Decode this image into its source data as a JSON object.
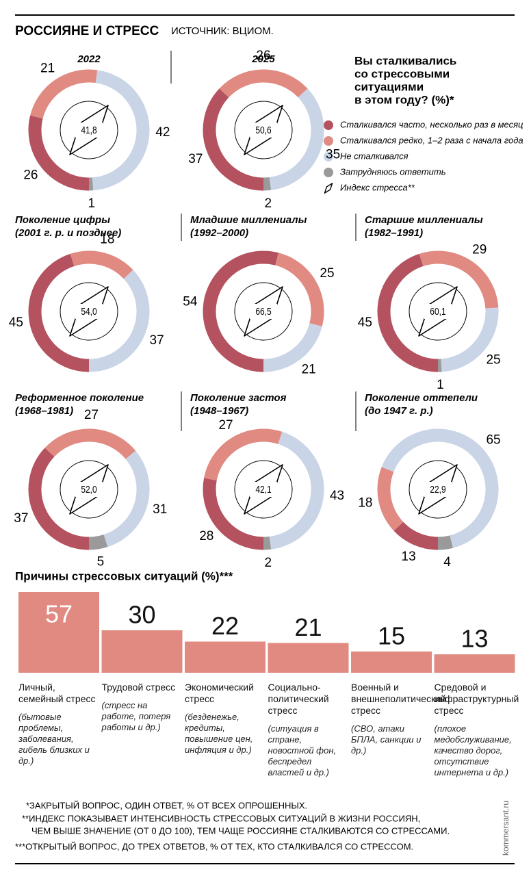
{
  "header": {
    "title": "РОССИЯНЕ И СТРЕСС",
    "source": "ИСТОЧНИК: ВЦИОМ."
  },
  "legend": {
    "title_lines": [
      "Вы сталкивались",
      "со стрессовыми",
      "ситуациями",
      "в этом году? (%)*"
    ],
    "items": [
      {
        "name": "Сталкивался часто, несколько раз в месяц",
        "color": "#b5525f"
      },
      {
        "name": "Сталкивался редко, 1–2 раза с начала года",
        "color": "#e08a82"
      },
      {
        "name": "Не сталкивался",
        "color": "#c9d5e6"
      },
      {
        "name": "Затрудняюсь ответить",
        "color": "#9a9a9a"
      }
    ],
    "index_label": "Индекс стресса**"
  },
  "chart_data": [
    {
      "type": "donut",
      "title": "2022",
      "values": [
        26,
        21,
        42,
        1
      ],
      "center_value": 41.8,
      "center_label": "41,8"
    },
    {
      "type": "donut",
      "title": "2025",
      "values": [
        37,
        26,
        35,
        2
      ],
      "center_value": 50.6,
      "center_label": "50,6"
    },
    {
      "type": "donut",
      "title": "Поколение цифры",
      "subtitle": "(2001 г. р. и позднее)",
      "values": [
        45,
        18,
        37,
        null
      ],
      "center_value": 54.0,
      "center_label": "54,0"
    },
    {
      "type": "donut",
      "title": "Младшие миллениалы",
      "subtitle": "(1992–2000)",
      "values": [
        54,
        25,
        21,
        null
      ],
      "center_value": 66.5,
      "center_label": "66,5"
    },
    {
      "type": "donut",
      "title": "Старшие миллениалы",
      "subtitle": "(1982–1991)",
      "values": [
        45,
        29,
        25,
        1
      ],
      "center_value": 60.1,
      "center_label": "60,1"
    },
    {
      "type": "donut",
      "title": "Реформенное поколение",
      "subtitle": "(1968–1981)",
      "values": [
        37,
        27,
        31,
        5
      ],
      "center_value": 52.0,
      "center_label": "52,0"
    },
    {
      "type": "donut",
      "title": "Поколение застоя",
      "subtitle": "(1948–1967)",
      "values": [
        28,
        27,
        43,
        2
      ],
      "center_value": 42.1,
      "center_label": "42,1"
    },
    {
      "type": "donut",
      "title": "Поколение оттепели",
      "subtitle": "(до 1947 г. р.)",
      "values": [
        13,
        18,
        65,
        4
      ],
      "center_value": 22.9,
      "center_label": "22,9"
    },
    {
      "type": "bar",
      "title": "Причины стрессовых ситуаций (%)***",
      "color": "#e08a82",
      "categories": [
        "Личный, семейный стресс",
        "Трудовой стресс",
        "Экономический стресс",
        "Социально-политический стресс",
        "Военный и внешнеполитический стресс",
        "Средовой и инфраструктурный стресс"
      ],
      "descriptions": [
        "(бытовые проблемы, заболевания, гибель близких и др.)",
        "(стресс на работе, потеря работы и др.)",
        "(безденежье, кредиты, повышение цен, инфляция и др.)",
        "(ситуация в стране, новостной фон, беспредел властей и др.)",
        "(СВО, атаки БПЛА, санкции и др.)",
        "(плохое медобслуживание, качество дорог, отсутствие интернета и др.)"
      ],
      "values": [
        57,
        30,
        22,
        21,
        15,
        13
      ]
    }
  ],
  "footnotes": [
    "*ЗАКРЫТЫЙ ВОПРОС, ОДИН ОТВЕТ, % ОТ ВСЕХ ОПРОШЕННЫХ.",
    "**ИНДЕКС ПОКАЗЫВАЕТ ИНТЕНСИВНОСТЬ СТРЕССОВЫХ СИТУАЦИЙ В ЖИЗНИ РОССИЯН,",
    "ЧЕМ ВЫШЕ ЗНАЧЕНИЕ (ОТ 0 ДО 100), ТЕМ ЧАЩЕ РОССИЯНЕ СТАЛКИВАЮТСЯ СО СТРЕССАМИ.",
    "***ОТКРЫТЫЙ ВОПРОС, ДО ТРЕХ ОТВЕТОВ, % ОТ ТЕХ, КТО СТАЛКИВАЛСЯ СО СТРЕССОМ."
  ],
  "watermark": "kommersant.ru"
}
